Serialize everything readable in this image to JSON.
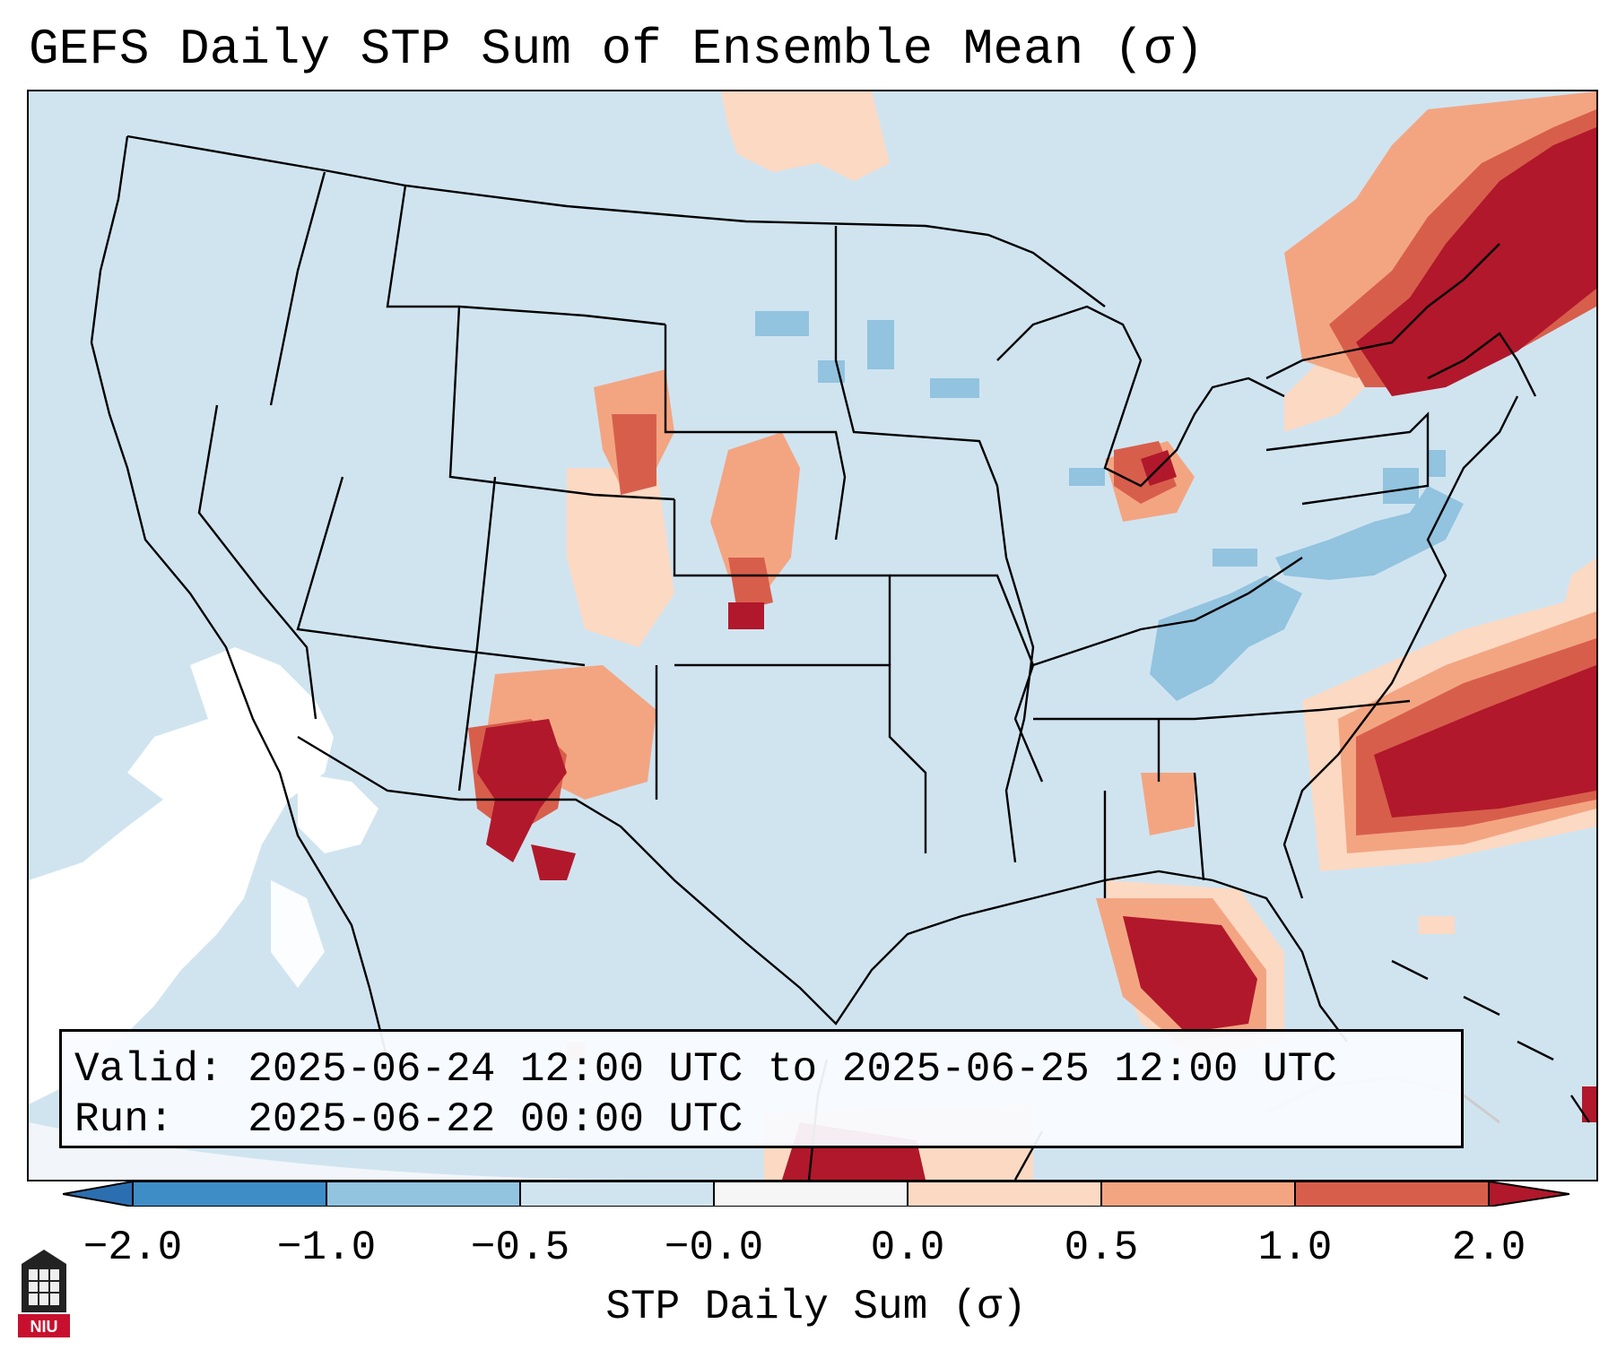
{
  "title": "GEFS Daily STP Sum of Ensemble Mean (σ)",
  "info": {
    "valid_label": "Valid:",
    "valid_text": "2025-06-24 12:00 UTC to 2025-06-25 12:00 UTC",
    "run_label": "Run:",
    "run_text": "2025-06-22 00:00 UTC"
  },
  "colorbar": {
    "label": "STP Daily Sum (σ)",
    "ticks": [
      "−2.0",
      "−1.0",
      "−0.5",
      "−0.0",
      "0.0",
      "0.5",
      "1.0",
      "2.0"
    ],
    "bins": [
      {
        "range": "< -2.0",
        "color": "#2b6fb0"
      },
      {
        "range": "-2.0 to -1.0",
        "color": "#3f8dc6"
      },
      {
        "range": "-1.0 to -0.5",
        "color": "#92c3df"
      },
      {
        "range": "-0.5 to -0.0",
        "color": "#d0e4f0"
      },
      {
        "range": "-0.0 to 0.0",
        "color": "#f6f6f6"
      },
      {
        "range": "0.0 to 0.5",
        "color": "#fcd9c3"
      },
      {
        "range": "0.5 to 1.0",
        "color": "#f3a582"
      },
      {
        "range": "1.0 to 2.0",
        "color": "#d85e4c"
      },
      {
        "range": "> 2.0",
        "color": "#b1182b"
      }
    ]
  },
  "logo": {
    "text": "NIU",
    "icon": "niu-logo-icon"
  },
  "colors": {
    "background_field": "#d0e4f0",
    "near_zero": "#ffffff",
    "negative": "#92c3df",
    "light_positive": "#fcd9c3",
    "mid_positive": "#f3a582",
    "high_positive": "#d85e4c",
    "max_positive": "#b1182b"
  }
}
